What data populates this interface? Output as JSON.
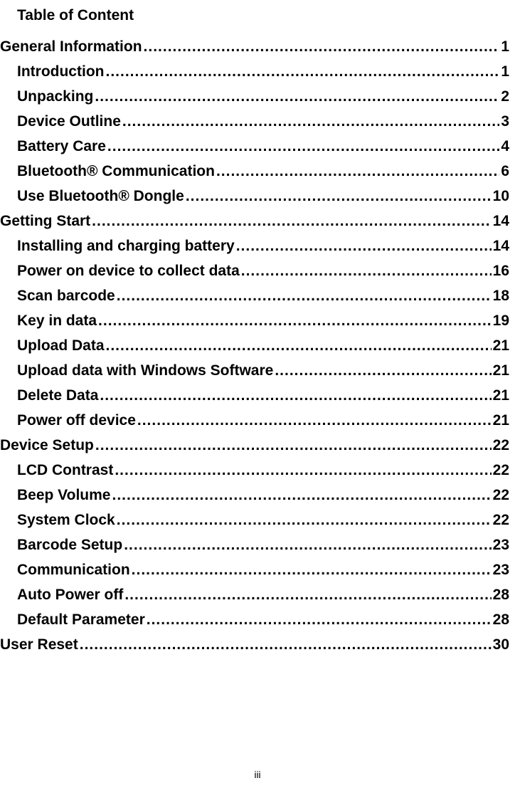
{
  "title": "Table of Content",
  "page_number": "iii",
  "entries": [
    {
      "level": 0,
      "label": "General Information",
      "page": "1"
    },
    {
      "level": 1,
      "label": "Introduction",
      "page": "1"
    },
    {
      "level": 1,
      "label": "Unpacking",
      "page": "2"
    },
    {
      "level": 1,
      "label": "Device Outline",
      "page": "3"
    },
    {
      "level": 1,
      "label": "Battery Care",
      "page": "4"
    },
    {
      "level": 1,
      "label": "Bluetooth® Communication",
      "page": "6"
    },
    {
      "level": 1,
      "label": "Use Bluetooth® Dongle",
      "page": "10"
    },
    {
      "level": 0,
      "label": "Getting Start",
      "page": "14"
    },
    {
      "level": 1,
      "label": "Installing and charging battery",
      "page": "14"
    },
    {
      "level": 1,
      "label": "Power on device to collect data",
      "page": "16"
    },
    {
      "level": 1,
      "label": "Scan barcode",
      "page": "18"
    },
    {
      "level": 1,
      "label": "Key in data",
      "page": "19"
    },
    {
      "level": 1,
      "label": "Upload Data",
      "page": "21"
    },
    {
      "level": 1,
      "label": "Upload data with Windows Software",
      "page": "21"
    },
    {
      "level": 1,
      "label": "Delete Data",
      "page": "21"
    },
    {
      "level": 1,
      "label": "Power off device",
      "page": "21"
    },
    {
      "level": 0,
      "label": "Device Setup",
      "page": "22"
    },
    {
      "level": 1,
      "label": "LCD Contrast",
      "page": "22"
    },
    {
      "level": 1,
      "label": "Beep Volume",
      "page": "22"
    },
    {
      "level": 1,
      "label": "System Clock",
      "page": "22"
    },
    {
      "level": 1,
      "label": "Barcode Setup",
      "page": "23"
    },
    {
      "level": 1,
      "label": "Communication",
      "page": "23"
    },
    {
      "level": 1,
      "label": "Auto Power off",
      "page": "28"
    },
    {
      "level": 1,
      "label": "Default Parameter",
      "page": "28"
    },
    {
      "level": 0,
      "label": "User Reset",
      "page": "30"
    }
  ]
}
